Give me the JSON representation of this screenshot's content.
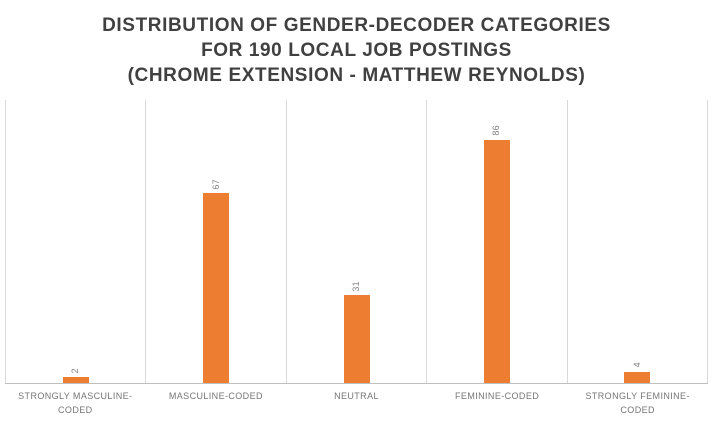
{
  "title": {
    "line1": "DISTRIBUTION OF GENDER-DECODER CATEGORIES",
    "line2": "FOR 190 LOCAL JOB POSTINGS",
    "line3": "(CHROME EXTENSION - MATTHEW REYNOLDS)"
  },
  "chart_data": {
    "type": "bar",
    "title": "DISTRIBUTION OF GENDER-DECODER CATEGORIES FOR 190 LOCAL JOB POSTINGS (CHROME EXTENSION - MATTHEW REYNOLDS)",
    "categories": [
      "STRONGLY MASCULINE-CODED",
      "MASCULINE-CODED",
      "NEUTRAL",
      "FEMININE-CODED",
      "STRONGLY FEMININE-CODED"
    ],
    "values": [
      2,
      67,
      31,
      86,
      4
    ],
    "xlabel": "",
    "ylabel": "",
    "ylim": [
      0,
      100
    ],
    "grid": "vertical-category-separators",
    "legend_position": "none",
    "data_labels": [
      "2",
      "67",
      "31",
      "86",
      "4"
    ],
    "data_labels_rotated": true,
    "colors": {
      "bar": "#ed7d31",
      "title_text": "#404040",
      "label_text": "#808080",
      "category_text": "#757575",
      "gridline": "#d9d9d9",
      "axis_line": "#bfbfbf",
      "background": "#ffffff"
    }
  }
}
